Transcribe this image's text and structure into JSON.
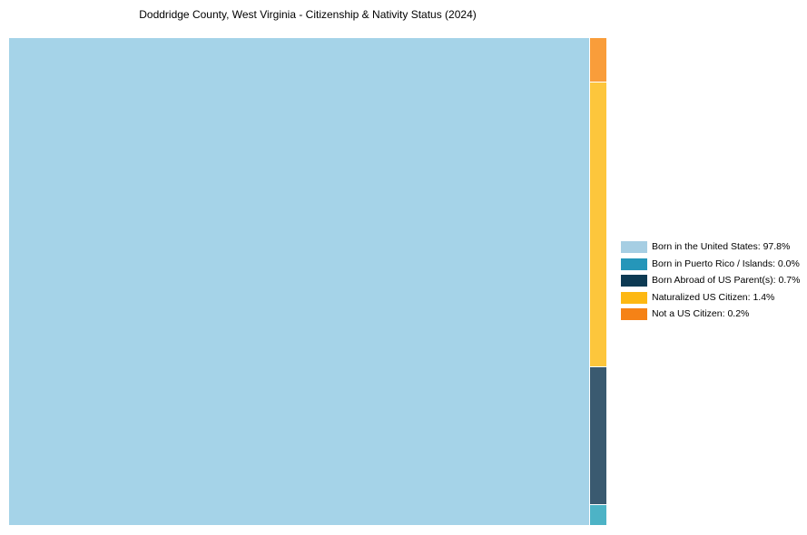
{
  "page": {
    "background": "#ffffff"
  },
  "chart_data": {
    "type": "treemap",
    "title": "Doddridge County, West Virginia - Citizenship & Nativity Status (2024)",
    "legend_position": "right",
    "unit": "percent",
    "total_pct": 100.0,
    "segments": [
      {
        "label": "Born in the United States",
        "pct": 97.8,
        "legend_text": "Born in the United States: 97.8%",
        "legend_color": "#a6cee3",
        "tile_color": "#a5d3e8"
      },
      {
        "label": "Born in Puerto Rico / Islands",
        "pct": 0.0,
        "legend_text": "Born in Puerto Rico / Islands: 0.0%",
        "legend_color": "#2596b9",
        "tile_color": "#4db3c6"
      },
      {
        "label": "Born Abroad of US Parent(s)",
        "pct": 0.7,
        "legend_text": "Born Abroad of US Parent(s): 0.7%",
        "legend_color": "#0d3a53",
        "tile_color": "#3a5a70"
      },
      {
        "label": "Naturalized US Citizen",
        "pct": 1.4,
        "legend_text": "Naturalized US Citizen: 1.4%",
        "legend_color": "#fdb813",
        "tile_color": "#fdc63c"
      },
      {
        "label": "Not a US Citizen",
        "pct": 0.2,
        "legend_text": "Not a US Citizen: 0.2%",
        "legend_color": "#f58216",
        "tile_color": "#f99d3a"
      }
    ]
  }
}
